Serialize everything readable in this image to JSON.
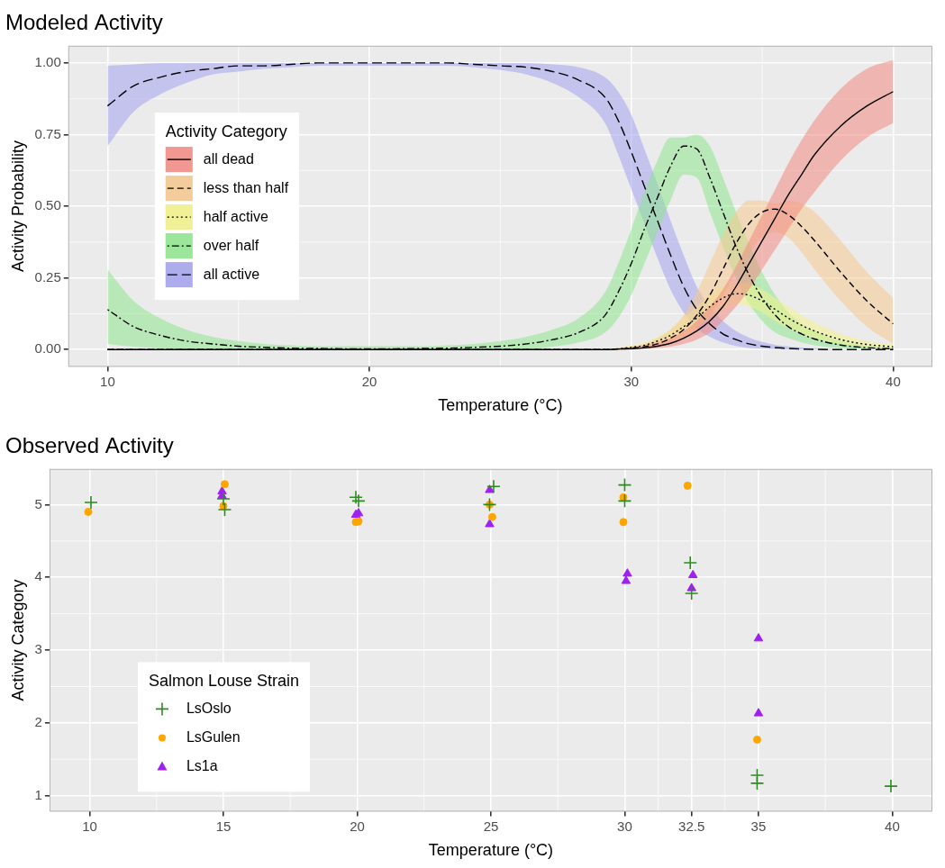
{
  "chart_data": [
    {
      "type": "line",
      "title": "Modeled Activity",
      "xlabel": "Temperature (°C)",
      "ylabel": "Activity Probability",
      "xlim": [
        8.5,
        41.5
      ],
      "ylim": [
        -0.06,
        1.06
      ],
      "xticks": [
        10,
        20,
        30,
        40
      ],
      "yticks": [
        {
          "value": 0,
          "label": "0.00"
        },
        {
          "value": 0.25,
          "label": "0.25"
        },
        {
          "value": 0.5,
          "label": "0.50"
        },
        {
          "value": 0.75,
          "label": "0.75"
        },
        {
          "value": 1,
          "label": "1.00"
        }
      ],
      "grid": true,
      "legend": "left",
      "legend_title": "Activity Category",
      "x": [
        10,
        11,
        12,
        13,
        14,
        15,
        16,
        17,
        18,
        19,
        20,
        21,
        22,
        23,
        24,
        25,
        26,
        27,
        28,
        29,
        29.5,
        30,
        30.5,
        31,
        31.5,
        32,
        32.5,
        33,
        33.5,
        34,
        34.5,
        35,
        35.5,
        36,
        36.5,
        37,
        38,
        39,
        40
      ],
      "series": [
        {
          "name": "all dead",
          "color": "#F28B82",
          "line_style": "solid",
          "values": [
            0,
            0,
            0,
            0,
            0,
            0,
            0,
            0,
            0,
            0,
            0,
            0,
            0,
            0,
            0,
            0,
            0,
            0,
            0,
            0,
            0.002,
            0.003,
            0.006,
            0.012,
            0.022,
            0.04,
            0.065,
            0.1,
            0.15,
            0.22,
            0.3,
            0.38,
            0.46,
            0.54,
            0.61,
            0.68,
            0.78,
            0.85,
            0.9
          ],
          "lower": [
            0,
            0,
            0,
            0,
            0,
            0,
            0,
            0,
            0,
            0,
            0,
            0,
            0,
            0,
            0,
            0,
            0,
            0,
            0,
            0,
            0,
            0.001,
            0.003,
            0.005,
            0.01,
            0.02,
            0.035,
            0.06,
            0.1,
            0.15,
            0.21,
            0.28,
            0.35,
            0.42,
            0.49,
            0.55,
            0.66,
            0.74,
            0.79
          ],
          "upper": [
            0,
            0,
            0,
            0,
            0,
            0,
            0,
            0,
            0,
            0,
            0,
            0,
            0,
            0,
            0,
            0,
            0,
            0,
            0,
            0.002,
            0.004,
            0.008,
            0.015,
            0.025,
            0.04,
            0.065,
            0.1,
            0.15,
            0.21,
            0.29,
            0.38,
            0.47,
            0.56,
            0.65,
            0.73,
            0.8,
            0.91,
            0.98,
            1.01
          ]
        },
        {
          "name": "less than half",
          "color": "#F5C98E",
          "line_style": "dashed",
          "values": [
            0,
            0,
            0,
            0,
            0,
            0,
            0,
            0,
            0,
            0,
            0,
            0,
            0,
            0,
            0,
            0,
            0,
            0,
            0,
            0,
            0.002,
            0.005,
            0.01,
            0.02,
            0.04,
            0.07,
            0.12,
            0.19,
            0.28,
            0.37,
            0.44,
            0.48,
            0.49,
            0.47,
            0.43,
            0.38,
            0.27,
            0.17,
            0.09
          ],
          "lower": [
            0,
            0,
            0,
            0,
            0,
            0,
            0,
            0,
            0,
            0,
            0,
            0,
            0,
            0,
            0,
            0,
            0,
            0,
            0,
            0,
            0,
            0.002,
            0.005,
            0.01,
            0.02,
            0.04,
            0.07,
            0.12,
            0.19,
            0.27,
            0.34,
            0.39,
            0.41,
            0.39,
            0.34,
            0.28,
            0.17,
            0.08,
            0.02
          ],
          "upper": [
            0,
            0,
            0,
            0,
            0,
            0,
            0,
            0,
            0,
            0,
            0,
            0,
            0,
            0,
            0,
            0,
            0,
            0,
            0,
            0,
            0.005,
            0.01,
            0.02,
            0.04,
            0.07,
            0.12,
            0.2,
            0.3,
            0.4,
            0.48,
            0.52,
            0.52,
            0.51,
            0.52,
            0.51,
            0.48,
            0.38,
            0.27,
            0.18
          ]
        },
        {
          "name": "half active",
          "color": "#F2F28A",
          "line_style": "dotted",
          "values": [
            0,
            0,
            0,
            0,
            0,
            0,
            0,
            0,
            0,
            0,
            0,
            0,
            0,
            0,
            0,
            0,
            0,
            0,
            0,
            0,
            0.003,
            0.008,
            0.015,
            0.03,
            0.05,
            0.08,
            0.11,
            0.15,
            0.18,
            0.195,
            0.19,
            0.17,
            0.14,
            0.11,
            0.085,
            0.065,
            0.035,
            0.018,
            0.01
          ],
          "lower": [
            0,
            0,
            0,
            0,
            0,
            0,
            0,
            0,
            0,
            0,
            0,
            0,
            0,
            0,
            0,
            0,
            0,
            0,
            0,
            0,
            0.001,
            0.004,
            0.008,
            0.018,
            0.032,
            0.05,
            0.08,
            0.11,
            0.14,
            0.16,
            0.15,
            0.13,
            0.1,
            0.075,
            0.055,
            0.04,
            0.02,
            0.008,
            0.003
          ],
          "upper": [
            0,
            0,
            0,
            0,
            0,
            0,
            0,
            0,
            0,
            0,
            0,
            0,
            0,
            0,
            0,
            0,
            0,
            0,
            0,
            0,
            0.006,
            0.015,
            0.025,
            0.045,
            0.07,
            0.11,
            0.15,
            0.19,
            0.22,
            0.235,
            0.23,
            0.21,
            0.18,
            0.15,
            0.12,
            0.095,
            0.055,
            0.03,
            0.018
          ]
        },
        {
          "name": "over half",
          "color": "#8EE68E",
          "line_style": "dotdash",
          "values": [
            0.14,
            0.08,
            0.05,
            0.03,
            0.02,
            0.012,
            0.008,
            0.005,
            0.004,
            0.003,
            0.003,
            0.003,
            0.004,
            0.005,
            0.008,
            0.012,
            0.02,
            0.035,
            0.06,
            0.12,
            0.2,
            0.3,
            0.42,
            0.53,
            0.64,
            0.71,
            0.7,
            0.6,
            0.48,
            0.36,
            0.26,
            0.18,
            0.12,
            0.08,
            0.055,
            0.037,
            0.016,
            0.007,
            0.003
          ],
          "lower": [
            0.02,
            0.01,
            0.005,
            0.002,
            0,
            0,
            0,
            0,
            0,
            0,
            0,
            0,
            0,
            0,
            0,
            0,
            0,
            0.01,
            0.025,
            0.06,
            0.11,
            0.19,
            0.3,
            0.41,
            0.52,
            0.61,
            0.6,
            0.48,
            0.36,
            0.25,
            0.16,
            0.1,
            0.06,
            0.04,
            0.025,
            0.015,
            0.005,
            0.002,
            0
          ],
          "upper": [
            0.28,
            0.17,
            0.11,
            0.07,
            0.045,
            0.03,
            0.02,
            0.015,
            0.012,
            0.012,
            0.012,
            0.012,
            0.012,
            0.015,
            0.02,
            0.03,
            0.045,
            0.07,
            0.11,
            0.2,
            0.3,
            0.42,
            0.55,
            0.66,
            0.74,
            0.74,
            0.75,
            0.71,
            0.6,
            0.48,
            0.37,
            0.27,
            0.19,
            0.13,
            0.09,
            0.065,
            0.03,
            0.015,
            0.007
          ]
        },
        {
          "name": "all active",
          "color": "#A3A3F0",
          "line_style": "longdash",
          "values": [
            0.85,
            0.92,
            0.95,
            0.97,
            0.98,
            0.99,
            0.99,
            0.995,
            1,
            1,
            1,
            1,
            1,
            1,
            0.995,
            0.99,
            0.985,
            0.97,
            0.94,
            0.88,
            0.8,
            0.69,
            0.57,
            0.45,
            0.33,
            0.22,
            0.14,
            0.09,
            0.055,
            0.035,
            0.02,
            0.012,
            0.007,
            0.004,
            0.002,
            0.001,
            0,
            0,
            0
          ],
          "lower": [
            0.71,
            0.83,
            0.89,
            0.93,
            0.96,
            0.97,
            0.98,
            0.985,
            0.99,
            0.99,
            0.99,
            0.99,
            0.99,
            0.99,
            0.985,
            0.975,
            0.96,
            0.93,
            0.88,
            0.79,
            0.68,
            0.56,
            0.44,
            0.32,
            0.21,
            0.13,
            0.075,
            0.045,
            0.025,
            0.013,
            0.006,
            0.003,
            0.001,
            0,
            0,
            0,
            0,
            0,
            0
          ],
          "upper": [
            0.99,
            0.995,
            1,
            1,
            1,
            1,
            1,
            1,
            1,
            1,
            1,
            1,
            1,
            1,
            1,
            1,
            1,
            0.995,
            0.985,
            0.95,
            0.9,
            0.82,
            0.7,
            0.58,
            0.45,
            0.33,
            0.22,
            0.15,
            0.1,
            0.065,
            0.042,
            0.027,
            0.017,
            0.011,
            0.007,
            0.005,
            0.002,
            0.001,
            0
          ]
        }
      ]
    },
    {
      "type": "scatter",
      "title": "Observed Activity",
      "xlabel": "Temperature (°C)",
      "ylabel": "Activity Category",
      "xlim": [
        8.5,
        41.5
      ],
      "ylim": [
        0.78,
        5.49
      ],
      "xticks": [
        10,
        15,
        20,
        25,
        30,
        32.5,
        35,
        40
      ],
      "yticks": [
        1,
        2,
        3,
        4,
        5
      ],
      "grid": true,
      "legend": "bottomleft",
      "legend_title": "Salmon Louse Strain",
      "series": [
        {
          "name": "LsOslo",
          "color": "#2E8B22",
          "marker": "cross",
          "x": [
            10.05,
            15.0,
            15.05,
            19.95,
            20.05,
            24.95,
            25.1,
            30.0,
            30.0,
            32.45,
            32.5,
            34.95,
            34.95,
            39.95
          ],
          "values": [
            5.03,
            5.08,
            4.93,
            5.1,
            5.05,
            5.0,
            5.25,
            5.27,
            5.05,
            4.2,
            3.78,
            1.28,
            1.17,
            1.13
          ]
        },
        {
          "name": "LsGulen",
          "color": "#FFA500",
          "marker": "circle",
          "x": [
            9.95,
            15.05,
            15.0,
            19.95,
            20.05,
            24.95,
            25.05,
            29.95,
            29.95,
            32.35,
            34.95
          ],
          "values": [
            4.9,
            5.28,
            4.98,
            4.76,
            4.77,
            5.0,
            4.83,
            5.1,
            4.76,
            5.26,
            1.77
          ]
        },
        {
          "name": "Ls1a",
          "color": "#A020F0",
          "marker": "triangle",
          "x": [
            14.95,
            14.95,
            20.05,
            19.95,
            24.95,
            24.95,
            30.1,
            30.05,
            32.55,
            32.5,
            35.0,
            35.0
          ],
          "values": [
            5.18,
            5.12,
            4.88,
            4.86,
            5.2,
            4.73,
            4.05,
            3.95,
            4.03,
            3.85,
            3.16,
            2.13
          ]
        }
      ]
    }
  ]
}
